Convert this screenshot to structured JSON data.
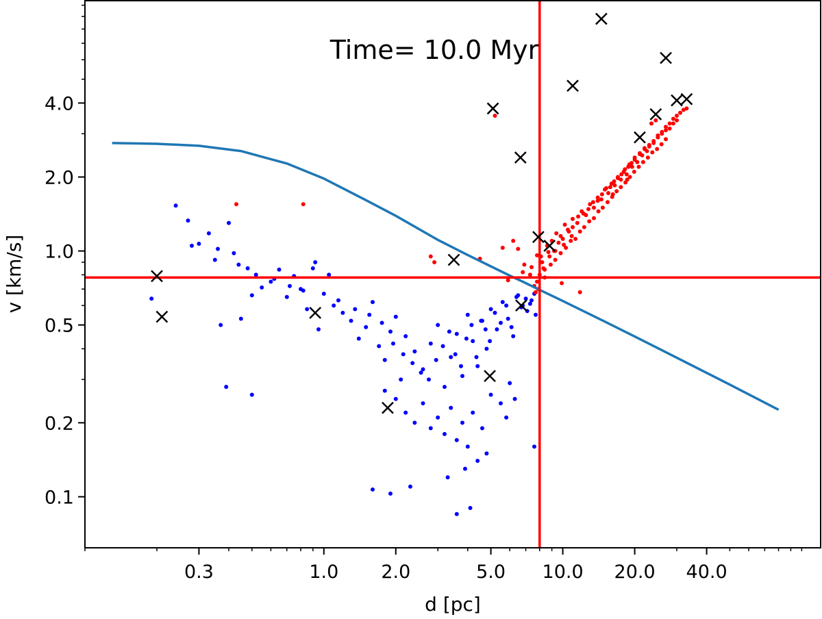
{
  "chart_data": {
    "type": "scatter",
    "xscale": "log",
    "yscale": "log",
    "xlim": [
      0.1,
      120
    ],
    "ylim": [
      0.062,
      10.5
    ],
    "xlabel": "d [pc]",
    "ylabel": "v [km/s]",
    "annotation": "Time= 10.0 Myr",
    "xticks": [
      {
        "value": 0.3,
        "label": "0.3"
      },
      {
        "value": 1.0,
        "label": "1.0"
      },
      {
        "value": 2.0,
        "label": "2.0"
      },
      {
        "value": 5.0,
        "label": "5.0"
      },
      {
        "value": 10.0,
        "label": "10.0"
      },
      {
        "value": 20.0,
        "label": "20.0"
      },
      {
        "value": 40.0,
        "label": "40.0"
      }
    ],
    "yticks": [
      {
        "value": 0.1,
        "label": "0.1"
      },
      {
        "value": 0.2,
        "label": "0.2"
      },
      {
        "value": 0.5,
        "label": "0.5"
      },
      {
        "value": 1.0,
        "label": "1.0"
      },
      {
        "value": 2.0,
        "label": "2.0"
      },
      {
        "value": 4.0,
        "label": "4.0"
      }
    ],
    "colors": {
      "bound": "#0000ff",
      "unbound": "#ff0000",
      "curve": "#1f77b4",
      "reference_lines": "#ff0000",
      "marker": "#000000"
    },
    "reference_lines": {
      "x": 8.0,
      "y": 0.78
    },
    "series": [
      {
        "name": "escape velocity curve",
        "kind": "line",
        "x": [
          0.13,
          0.2,
          0.3,
          0.45,
          0.7,
          1.0,
          1.5,
          2.0,
          3.0,
          4.0,
          5.0,
          6.0,
          7.0,
          8.0,
          10.0,
          15.0,
          20.0,
          30.0,
          50.0,
          80.0
        ],
        "y": [
          2.75,
          2.73,
          2.68,
          2.55,
          2.27,
          1.97,
          1.61,
          1.39,
          1.11,
          0.963,
          0.866,
          0.794,
          0.74,
          0.695,
          0.626,
          0.516,
          0.449,
          0.368,
          0.286,
          0.226
        ]
      },
      {
        "name": "bound stars",
        "kind": "scatter",
        "x": [
          0.19,
          0.24,
          0.27,
          0.3,
          0.33,
          0.35,
          0.37,
          0.4,
          0.42,
          0.45,
          0.48,
          0.5,
          0.55,
          0.6,
          0.65,
          0.7,
          0.75,
          0.8,
          0.85,
          0.9,
          0.95,
          1.0,
          1.05,
          1.1,
          1.2,
          1.3,
          1.4,
          1.5,
          1.6,
          1.7,
          1.8,
          1.9,
          2.0,
          2.1,
          2.2,
          2.4,
          2.6,
          2.8,
          3.0,
          3.2,
          3.4,
          3.6,
          3.8,
          4.0,
          4.2,
          4.4,
          4.6,
          4.8,
          5.0,
          5.3,
          5.6,
          5.9,
          6.2,
          6.5,
          6.8,
          7.1,
          7.4,
          7.7,
          0.28,
          0.36,
          0.44,
          0.52,
          0.62,
          0.72,
          0.82,
          0.92,
          1.15,
          1.35,
          1.55,
          1.75,
          1.95,
          2.15,
          2.35,
          2.55,
          2.75,
          2.95,
          3.15,
          3.35,
          3.55,
          3.75,
          3.95,
          4.15,
          4.35,
          4.55,
          4.75,
          4.95,
          5.2,
          5.5,
          5.8,
          6.1,
          6.4,
          6.7,
          7.0,
          7.3,
          7.6,
          1.8,
          2.0,
          2.2,
          2.4,
          2.6,
          2.8,
          3.0,
          3.2,
          3.4,
          3.6,
          3.8,
          4.0,
          4.2,
          4.4,
          4.6,
          4.8,
          5.0,
          5.5,
          6.0,
          7.6,
          2.3,
          3.3,
          3.9,
          1.6,
          1.9,
          0.5,
          0.39,
          3.6,
          4.1,
          5.8,
          6.3
        ],
        "y": [
          0.64,
          1.53,
          1.33,
          1.07,
          1.18,
          0.92,
          0.5,
          1.3,
          0.98,
          0.53,
          0.85,
          0.66,
          0.71,
          0.75,
          0.84,
          0.65,
          0.79,
          0.7,
          0.58,
          0.85,
          0.48,
          0.67,
          0.8,
          0.6,
          0.56,
          0.52,
          0.44,
          0.49,
          0.62,
          0.41,
          0.36,
          0.47,
          0.54,
          0.3,
          0.45,
          0.39,
          0.33,
          0.42,
          0.5,
          0.28,
          0.37,
          0.46,
          0.31,
          0.55,
          0.43,
          0.34,
          0.52,
          0.4,
          0.58,
          0.48,
          0.62,
          0.53,
          0.45,
          0.66,
          0.6,
          0.57,
          0.63,
          0.55,
          1.05,
          1.02,
          0.88,
          0.8,
          0.77,
          0.72,
          0.69,
          0.9,
          0.63,
          0.58,
          0.55,
          0.51,
          0.42,
          0.38,
          0.35,
          0.32,
          0.3,
          0.36,
          0.41,
          0.47,
          0.38,
          0.34,
          0.44,
          0.5,
          0.37,
          0.52,
          0.48,
          0.43,
          0.56,
          0.51,
          0.6,
          0.49,
          0.65,
          0.59,
          0.64,
          0.61,
          0.67,
          0.27,
          0.25,
          0.22,
          0.2,
          0.24,
          0.19,
          0.21,
          0.18,
          0.23,
          0.17,
          0.2,
          0.16,
          0.22,
          0.14,
          0.19,
          0.15,
          0.26,
          0.24,
          0.29,
          0.16,
          0.11,
          0.12,
          0.13,
          0.107,
          0.103,
          0.26,
          0.28,
          0.085,
          0.09,
          0.21,
          0.25
        ]
      },
      {
        "name": "unbound stars",
        "kind": "scatter",
        "x": [
          0.43,
          0.82,
          2.8,
          2.9,
          4.5,
          5.2,
          5.6,
          6.2,
          6.5,
          6.9,
          7.3,
          7.8,
          8.2,
          8.6,
          9.0,
          9.4,
          9.8,
          10.2,
          10.6,
          11.0,
          11.5,
          12.0,
          12.5,
          13.0,
          13.5,
          14.0,
          14.5,
          15.0,
          15.5,
          16.0,
          16.5,
          17.0,
          17.5,
          18.0,
          18.5,
          19.0,
          19.5,
          20.0,
          20.5,
          21.0,
          21.5,
          22.0,
          22.5,
          23.0,
          24.0,
          25.0,
          26.0,
          27.0,
          28.0,
          29.0,
          30.0,
          31.0,
          32.0,
          33.0,
          7.6,
          7.9,
          8.3,
          8.8,
          9.2,
          9.6,
          10.0,
          10.5,
          11.0,
          11.6,
          12.2,
          12.8,
          13.4,
          14.0,
          14.6,
          15.2,
          15.8,
          16.4,
          17.0,
          17.6,
          18.2,
          18.8,
          19.4,
          20.0,
          21.0,
          22.0,
          23.0,
          24.0,
          25.0,
          26.0,
          27.0,
          28.0,
          29.0,
          30.0,
          7.7,
          8.0,
          8.4,
          8.9,
          9.3,
          9.8,
          10.3,
          10.8,
          11.3,
          11.8,
          12.3,
          12.9,
          13.5,
          14.1,
          14.7,
          15.4,
          16.1,
          16.8,
          17.5,
          18.3,
          19.1,
          19.9,
          20.8,
          21.7,
          22.7,
          23.7,
          24.8,
          25.9,
          27.0,
          5.9,
          6.8,
          7.4,
          8.1,
          8.7,
          9.3,
          10.1,
          10.9,
          23.5,
          24.5,
          11.8,
          9.9,
          8.4,
          7.8,
          18.6,
          16.2
        ],
        "y": [
          1.55,
          1.55,
          0.95,
          0.9,
          0.93,
          3.55,
          1.03,
          1.1,
          1.02,
          0.88,
          0.8,
          0.75,
          0.9,
          1.05,
          1.1,
          1.18,
          1.15,
          1.28,
          1.2,
          1.35,
          1.3,
          1.45,
          1.4,
          1.55,
          1.5,
          1.65,
          1.62,
          1.78,
          1.72,
          1.88,
          1.85,
          2.0,
          1.95,
          2.1,
          2.05,
          2.25,
          2.2,
          2.35,
          2.3,
          2.5,
          2.45,
          2.6,
          2.55,
          2.7,
          2.8,
          2.95,
          3.05,
          3.2,
          3.3,
          3.45,
          3.55,
          3.65,
          3.75,
          3.8,
          0.72,
          0.7,
          0.85,
          0.95,
          1.0,
          1.08,
          1.12,
          1.22,
          1.25,
          1.38,
          1.42,
          1.48,
          1.58,
          1.6,
          1.7,
          1.8,
          1.82,
          1.92,
          1.98,
          2.05,
          2.15,
          2.2,
          2.28,
          2.4,
          2.48,
          2.62,
          2.66,
          2.75,
          2.9,
          3.0,
          3.1,
          3.15,
          3.3,
          3.4,
          0.68,
          0.8,
          0.78,
          0.88,
          0.92,
          0.98,
          1.03,
          1.1,
          1.12,
          1.2,
          1.25,
          1.32,
          1.36,
          1.45,
          1.5,
          1.58,
          1.66,
          1.75,
          1.82,
          1.9,
          2.0,
          2.1,
          2.2,
          2.3,
          2.4,
          2.52,
          2.6,
          2.72,
          2.85,
          0.76,
          0.82,
          0.86,
          0.95,
          0.99,
          1.0,
          1.06,
          1.15,
          3.3,
          3.4,
          0.68,
          0.74,
          0.84,
          0.96,
          1.95,
          1.7
        ]
      },
      {
        "name": "marked stars",
        "kind": "x-marker",
        "x": [
          0.2,
          0.21,
          0.92,
          1.85,
          3.5,
          5.1,
          4.95,
          6.65,
          6.7,
          7.9,
          8.8,
          11.0,
          14.5,
          21.0,
          24.5,
          27.0,
          30.0,
          33.0
        ],
        "y": [
          0.79,
          0.54,
          0.56,
          0.23,
          0.92,
          3.8,
          0.31,
          2.4,
          0.6,
          1.14,
          1.05,
          4.7,
          8.8,
          2.9,
          3.6,
          6.1,
          4.1,
          4.15
        ]
      }
    ]
  }
}
